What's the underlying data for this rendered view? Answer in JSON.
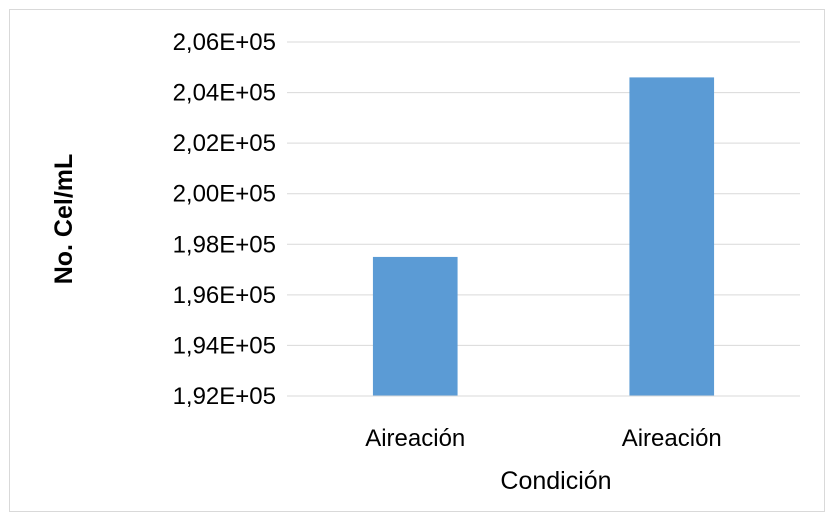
{
  "chart_data": {
    "type": "bar",
    "categories": [
      "Aireación",
      "Aireación"
    ],
    "values": [
      197500,
      204600
    ],
    "title": "",
    "xlabel": "Condición",
    "ylabel": "No. Cel/mL",
    "ylim": [
      192000,
      206000
    ],
    "ytick_values": [
      192000,
      194000,
      196000,
      198000,
      200000,
      202000,
      204000,
      206000
    ],
    "ytick_labels": [
      "1,92E+05",
      "1,94E+05",
      "1,96E+05",
      "1,98E+05",
      "2,00E+05",
      "2,02E+05",
      "2,04E+05",
      "2,06E+05"
    ],
    "grid": true,
    "legend": "none",
    "bar_color": "#5b9bd5",
    "grid_color": "#d9d9d9"
  }
}
